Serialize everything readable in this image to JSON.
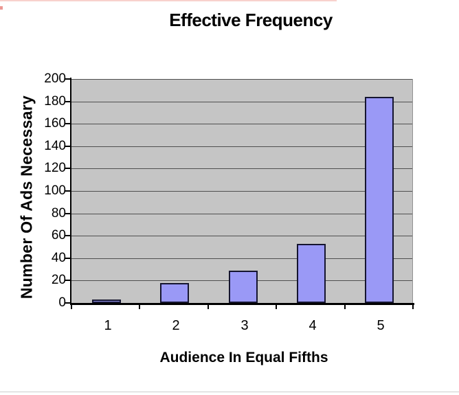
{
  "chart_data": {
    "type": "bar",
    "title": "Effective Frequency",
    "categories": [
      "1",
      "2",
      "3",
      "4",
      "5"
    ],
    "values": [
      3,
      18,
      29,
      53,
      184
    ],
    "xlabel": "Audience In Equal Fifths",
    "ylabel": "Number Of Ads Necessary",
    "ylim": [
      0,
      200
    ],
    "yticks": [
      0,
      20,
      40,
      60,
      80,
      100,
      120,
      140,
      160,
      180,
      200
    ],
    "grid": "horizontal gridlines on, one per y tick",
    "legend": "none",
    "colors": {
      "bar_fill": "#9a99f6",
      "bar_border": "#15152f",
      "plot_background": "#c5c5c5",
      "gridline": "#4f4f4f",
      "axis": "#000000",
      "text": "#000000",
      "page_background": "#ffffff"
    }
  }
}
